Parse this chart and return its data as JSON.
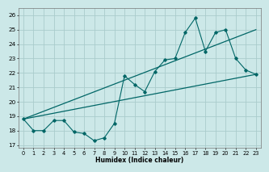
{
  "title": "",
  "xlabel": "Humidex (Indice chaleur)",
  "bg_color": "#cce8e8",
  "grid_color": "#aacccc",
  "line_color": "#006666",
  "xlim": [
    -0.5,
    23.5
  ],
  "ylim": [
    16.8,
    26.5
  ],
  "yticks": [
    17,
    18,
    19,
    20,
    21,
    22,
    23,
    24,
    25,
    26
  ],
  "xticks": [
    0,
    1,
    2,
    3,
    4,
    5,
    6,
    7,
    8,
    9,
    10,
    11,
    12,
    13,
    14,
    15,
    16,
    17,
    18,
    19,
    20,
    21,
    22,
    23
  ],
  "main_x": [
    0,
    1,
    2,
    3,
    4,
    5,
    6,
    7,
    8,
    9,
    10,
    11,
    12,
    13,
    14,
    15,
    16,
    17,
    18,
    19,
    20,
    21,
    22,
    23
  ],
  "main_y": [
    18.8,
    18.0,
    18.0,
    18.7,
    18.7,
    17.9,
    17.8,
    17.3,
    17.5,
    18.5,
    21.8,
    21.2,
    20.7,
    22.1,
    22.9,
    23.0,
    24.8,
    25.8,
    23.5,
    24.8,
    25.0,
    23.0,
    22.2,
    21.9
  ],
  "lower_line_x": [
    0,
    23
  ],
  "lower_line_y": [
    18.8,
    21.9
  ],
  "upper_line_x": [
    0,
    23
  ],
  "upper_line_y": [
    18.8,
    25.0
  ]
}
